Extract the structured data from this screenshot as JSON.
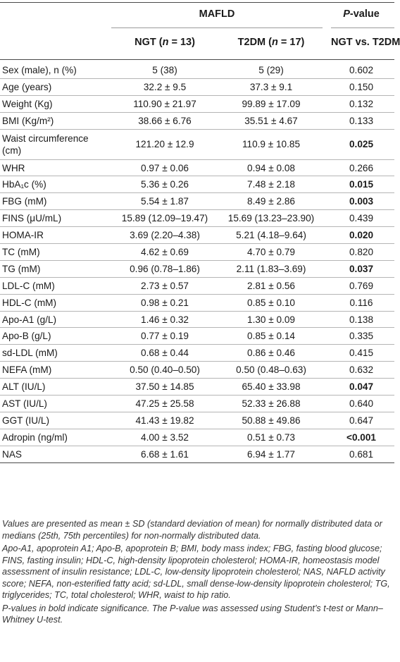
{
  "header": {
    "group": "MAFLD",
    "pvalue": "P-value",
    "ngt": "NGT (n = 13)",
    "t2dm": "T2DM (n = 17)",
    "comparison": "NGT vs. T2DM"
  },
  "rows": [
    {
      "label": "Sex (male), n (%)",
      "ngt": "5 (38)",
      "t2dm": "5 (29)",
      "p": "0.602",
      "bold": false
    },
    {
      "label": "Age (years)",
      "ngt": "32.2 ± 9.5",
      "t2dm": "37.3 ± 9.1",
      "p": "0.150",
      "bold": false
    },
    {
      "label": "Weight (Kg)",
      "ngt": "110.90 ± 21.97",
      "t2dm": "99.89 ± 17.09",
      "p": "0.132",
      "bold": false
    },
    {
      "label": "BMI (Kg/m²)",
      "ngt": "38.66 ± 6.76",
      "t2dm": "35.51 ± 4.67",
      "p": "0.133",
      "bold": false
    },
    {
      "label": "Waist circumference (cm)",
      "ngt": "121.20 ± 12.9",
      "t2dm": "110.9 ± 10.85",
      "p": "0.025",
      "bold": true
    },
    {
      "label": "WHR",
      "ngt": "0.97 ± 0.06",
      "t2dm": "0.94 ± 0.08",
      "p": "0.266",
      "bold": false
    },
    {
      "label": "HbA₁c (%)",
      "ngt": "5.36 ± 0.26",
      "t2dm": "7.48 ± 2.18",
      "p": "0.015",
      "bold": true
    },
    {
      "label": "FBG (mM)",
      "ngt": "5.54 ± 1.87",
      "t2dm": "8.49 ± 2.86",
      "p": "0.003",
      "bold": true
    },
    {
      "label": "FINS (μU/mL)",
      "ngt": "15.89 (12.09–19.47)",
      "t2dm": "15.69 (13.23–23.90)",
      "p": "0.439",
      "bold": false
    },
    {
      "label": "HOMA-IR",
      "ngt": "3.69 (2.20–4.38)",
      "t2dm": "5.21 (4.18–9.64)",
      "p": "0.020",
      "bold": true
    },
    {
      "label": "TC (mM)",
      "ngt": "4.62 ± 0.69",
      "t2dm": "4.70 ± 0.79",
      "p": "0.820",
      "bold": false
    },
    {
      "label": "TG (mM)",
      "ngt": "0.96 (0.78–1.86)",
      "t2dm": "2.11 (1.83–3.69)",
      "p": "0.037",
      "bold": true
    },
    {
      "label": "LDL-C (mM)",
      "ngt": "2.73 ± 0.57",
      "t2dm": "2.81 ± 0.56",
      "p": "0.769",
      "bold": false
    },
    {
      "label": "HDL-C (mM)",
      "ngt": "0.98 ± 0.21",
      "t2dm": "0.85 ± 0.10",
      "p": "0.116",
      "bold": false
    },
    {
      "label": "Apo-A1 (g/L)",
      "ngt": "1.46 ± 0.32",
      "t2dm": "1.30 ± 0.09",
      "p": "0.138",
      "bold": false
    },
    {
      "label": "Apo-B (g/L)",
      "ngt": "0.77 ± 0.19",
      "t2dm": "0.85 ± 0.14",
      "p": "0.335",
      "bold": false
    },
    {
      "label": "sd-LDL (mM)",
      "ngt": "0.68 ± 0.44",
      "t2dm": "0.86 ± 0.46",
      "p": "0.415",
      "bold": false
    },
    {
      "label": "NEFA (mM)",
      "ngt": "0.50 (0.40–0.50)",
      "t2dm": "0.50 (0.48–0.63)",
      "p": "0.632",
      "bold": false
    },
    {
      "label": "ALT (IU/L)",
      "ngt": "37.50 ± 14.85",
      "t2dm": "65.40 ± 33.98",
      "p": "0.047",
      "bold": true
    },
    {
      "label": "AST (IU/L)",
      "ngt": "47.25 ± 25.58",
      "t2dm": "52.33 ± 26.88",
      "p": "0.640",
      "bold": false
    },
    {
      "label": "GGT (IU/L)",
      "ngt": "41.43 ± 19.82",
      "t2dm": "50.88 ± 49.86",
      "p": "0.647",
      "bold": false
    },
    {
      "label": "Adropin (ng/ml)",
      "ngt": "4.00 ± 3.52",
      "t2dm": "0.51 ± 0.73",
      "p": "<0.001",
      "bold": true
    },
    {
      "label": "NAS",
      "ngt": "6.68 ± 1.61",
      "t2dm": "6.94 ± 1.77",
      "p": "0.681",
      "bold": false
    }
  ],
  "notes": {
    "values": "Values are presented as mean ± SD (standard deviation of mean) for normally distributed data or medians (25th, 75th percentiles) for non-normally distributed data.",
    "abbreviations": "Apo-A1, apoprotein A1; Apo-B, apoprotein B; BMI, body mass index; FBG, fasting blood glucose; FINS, fasting insulin; HDL-C, high-density lipoprotein cholesterol; HOMA-IR, homeostasis model assessment of insulin resistance; LDL-C, low-density lipoprotein cholesterol; NAS, NAFLD activity score; NEFA, non-esterified fatty acid; sd-LDL, small dense-low-density lipoprotein cholesterol; TG, triglycerides; TC, total cholesterol; WHR, waist to hip ratio.",
    "significance": "P-values in bold indicate significance. The P-value was assessed using Student’s t-test or Mann–Whitney U-test."
  }
}
